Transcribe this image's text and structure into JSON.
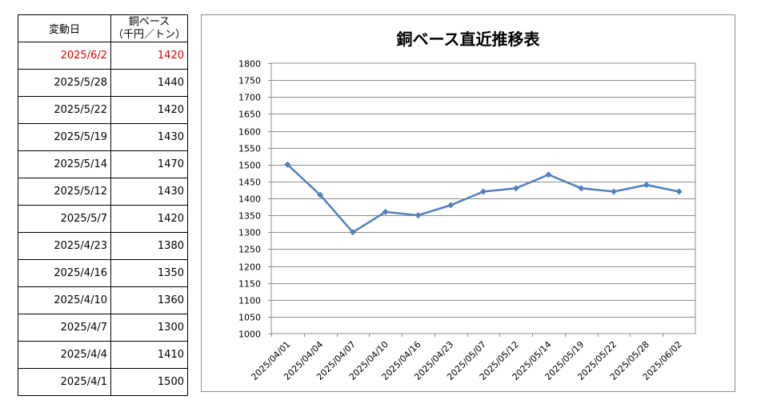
{
  "table": {
    "header_date": "変動日",
    "header_price_line1": "銅ベース",
    "header_price_line2": "（千円／トン）",
    "rows": [
      {
        "date": "2025/6/2",
        "price": "1420",
        "highlight": true
      },
      {
        "date": "2025/5/28",
        "price": "1440",
        "highlight": false
      },
      {
        "date": "2025/5/22",
        "price": "1420",
        "highlight": false
      },
      {
        "date": "2025/5/19",
        "price": "1430",
        "highlight": false
      },
      {
        "date": "2025/5/14",
        "price": "1470",
        "highlight": false
      },
      {
        "date": "2025/5/12",
        "price": "1430",
        "highlight": false
      },
      {
        "date": "2025/5/7",
        "price": "1420",
        "highlight": false
      },
      {
        "date": "2025/4/23",
        "price": "1380",
        "highlight": false
      },
      {
        "date": "2025/4/16",
        "price": "1350",
        "highlight": false
      },
      {
        "date": "2025/4/10",
        "price": "1360",
        "highlight": false
      },
      {
        "date": "2025/4/7",
        "price": "1300",
        "highlight": false
      },
      {
        "date": "2025/4/4",
        "price": "1410",
        "highlight": false
      },
      {
        "date": "2025/4/1",
        "price": "1500",
        "highlight": false
      }
    ],
    "highlight_color": "#e00000"
  },
  "chart_data": {
    "type": "line",
    "title": "銅ベース直近推移表",
    "categories": [
      "2025/04/01",
      "2025/04/04",
      "2025/04/07",
      "2025/04/10",
      "2025/04/16",
      "2025/04/23",
      "2025/05/07",
      "2025/05/12",
      "2025/05/14",
      "2025/05/19",
      "2025/05/22",
      "2025/05/28",
      "2025/06/02"
    ],
    "values": [
      1500,
      1410,
      1300,
      1360,
      1350,
      1380,
      1420,
      1430,
      1470,
      1430,
      1420,
      1440,
      1420
    ],
    "ylim": [
      1000,
      1800
    ],
    "ytick_step": 50,
    "grid": true,
    "line_color": "#4f81bd",
    "marker": "diamond"
  }
}
